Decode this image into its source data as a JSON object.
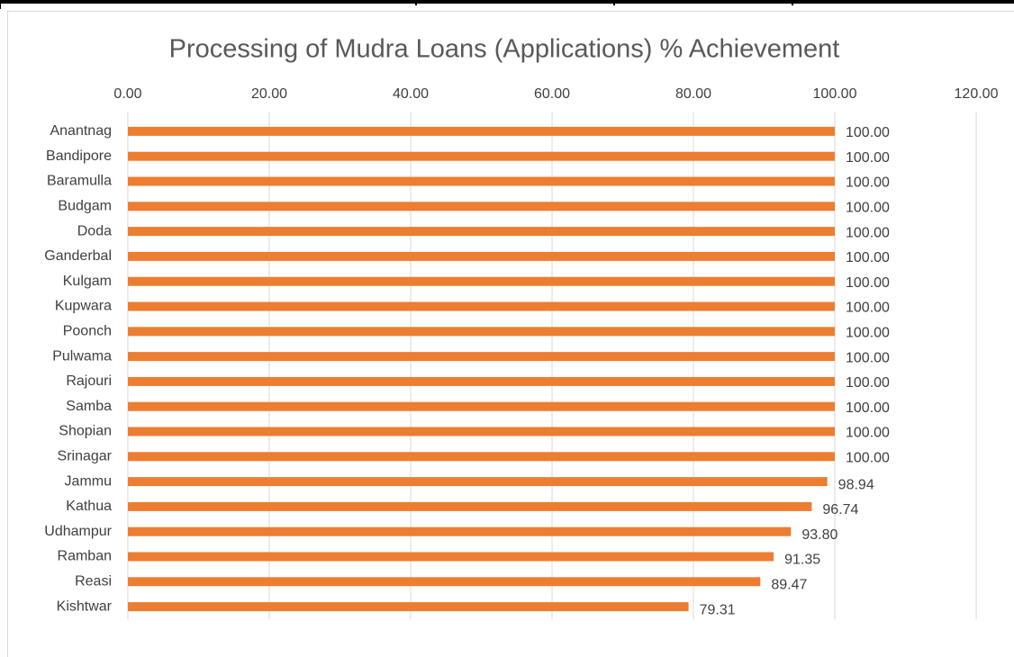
{
  "chart_data": {
    "type": "bar",
    "orientation": "horizontal",
    "title": "Processing of Mudra Loans (Applications)  % Achievement",
    "categories": [
      "Anantnag",
      "Bandipore",
      "Baramulla",
      "Budgam",
      "Doda",
      "Ganderbal",
      "Kulgam",
      "Kupwara",
      "Poonch",
      "Pulwama",
      "Rajouri",
      "Samba",
      "Shopian",
      "Srinagar",
      "Jammu",
      "Kathua",
      "Udhampur",
      "Ramban",
      "Reasi",
      "Kishtwar"
    ],
    "values": [
      100,
      100,
      100,
      100,
      100,
      100,
      100,
      100,
      100,
      100,
      100,
      100,
      100,
      100,
      98.94,
      96.74,
      93.8,
      91.35,
      89.47,
      79.31
    ],
    "value_labels": [
      "100.00",
      "100.00",
      "100.00",
      "100.00",
      "100.00",
      "100.00",
      "100.00",
      "100.00",
      "100.00",
      "100.00",
      "100.00",
      "100.00",
      "100.00",
      "100.00",
      "98.94",
      "96.74",
      "93.80",
      "91.35",
      "89.47",
      "79.31"
    ],
    "color": "#ed7d31",
    "xlim": [
      0,
      120
    ],
    "xticks": [
      {
        "value": 0,
        "label": "0.00"
      },
      {
        "value": 20,
        "label": "20.00"
      },
      {
        "value": 40,
        "label": "40.00"
      },
      {
        "value": 60,
        "label": "60.00"
      },
      {
        "value": 80,
        "label": "80.00"
      },
      {
        "value": 100,
        "label": "100.00"
      },
      {
        "value": 120,
        "label": "120.00"
      }
    ],
    "grid": true
  }
}
